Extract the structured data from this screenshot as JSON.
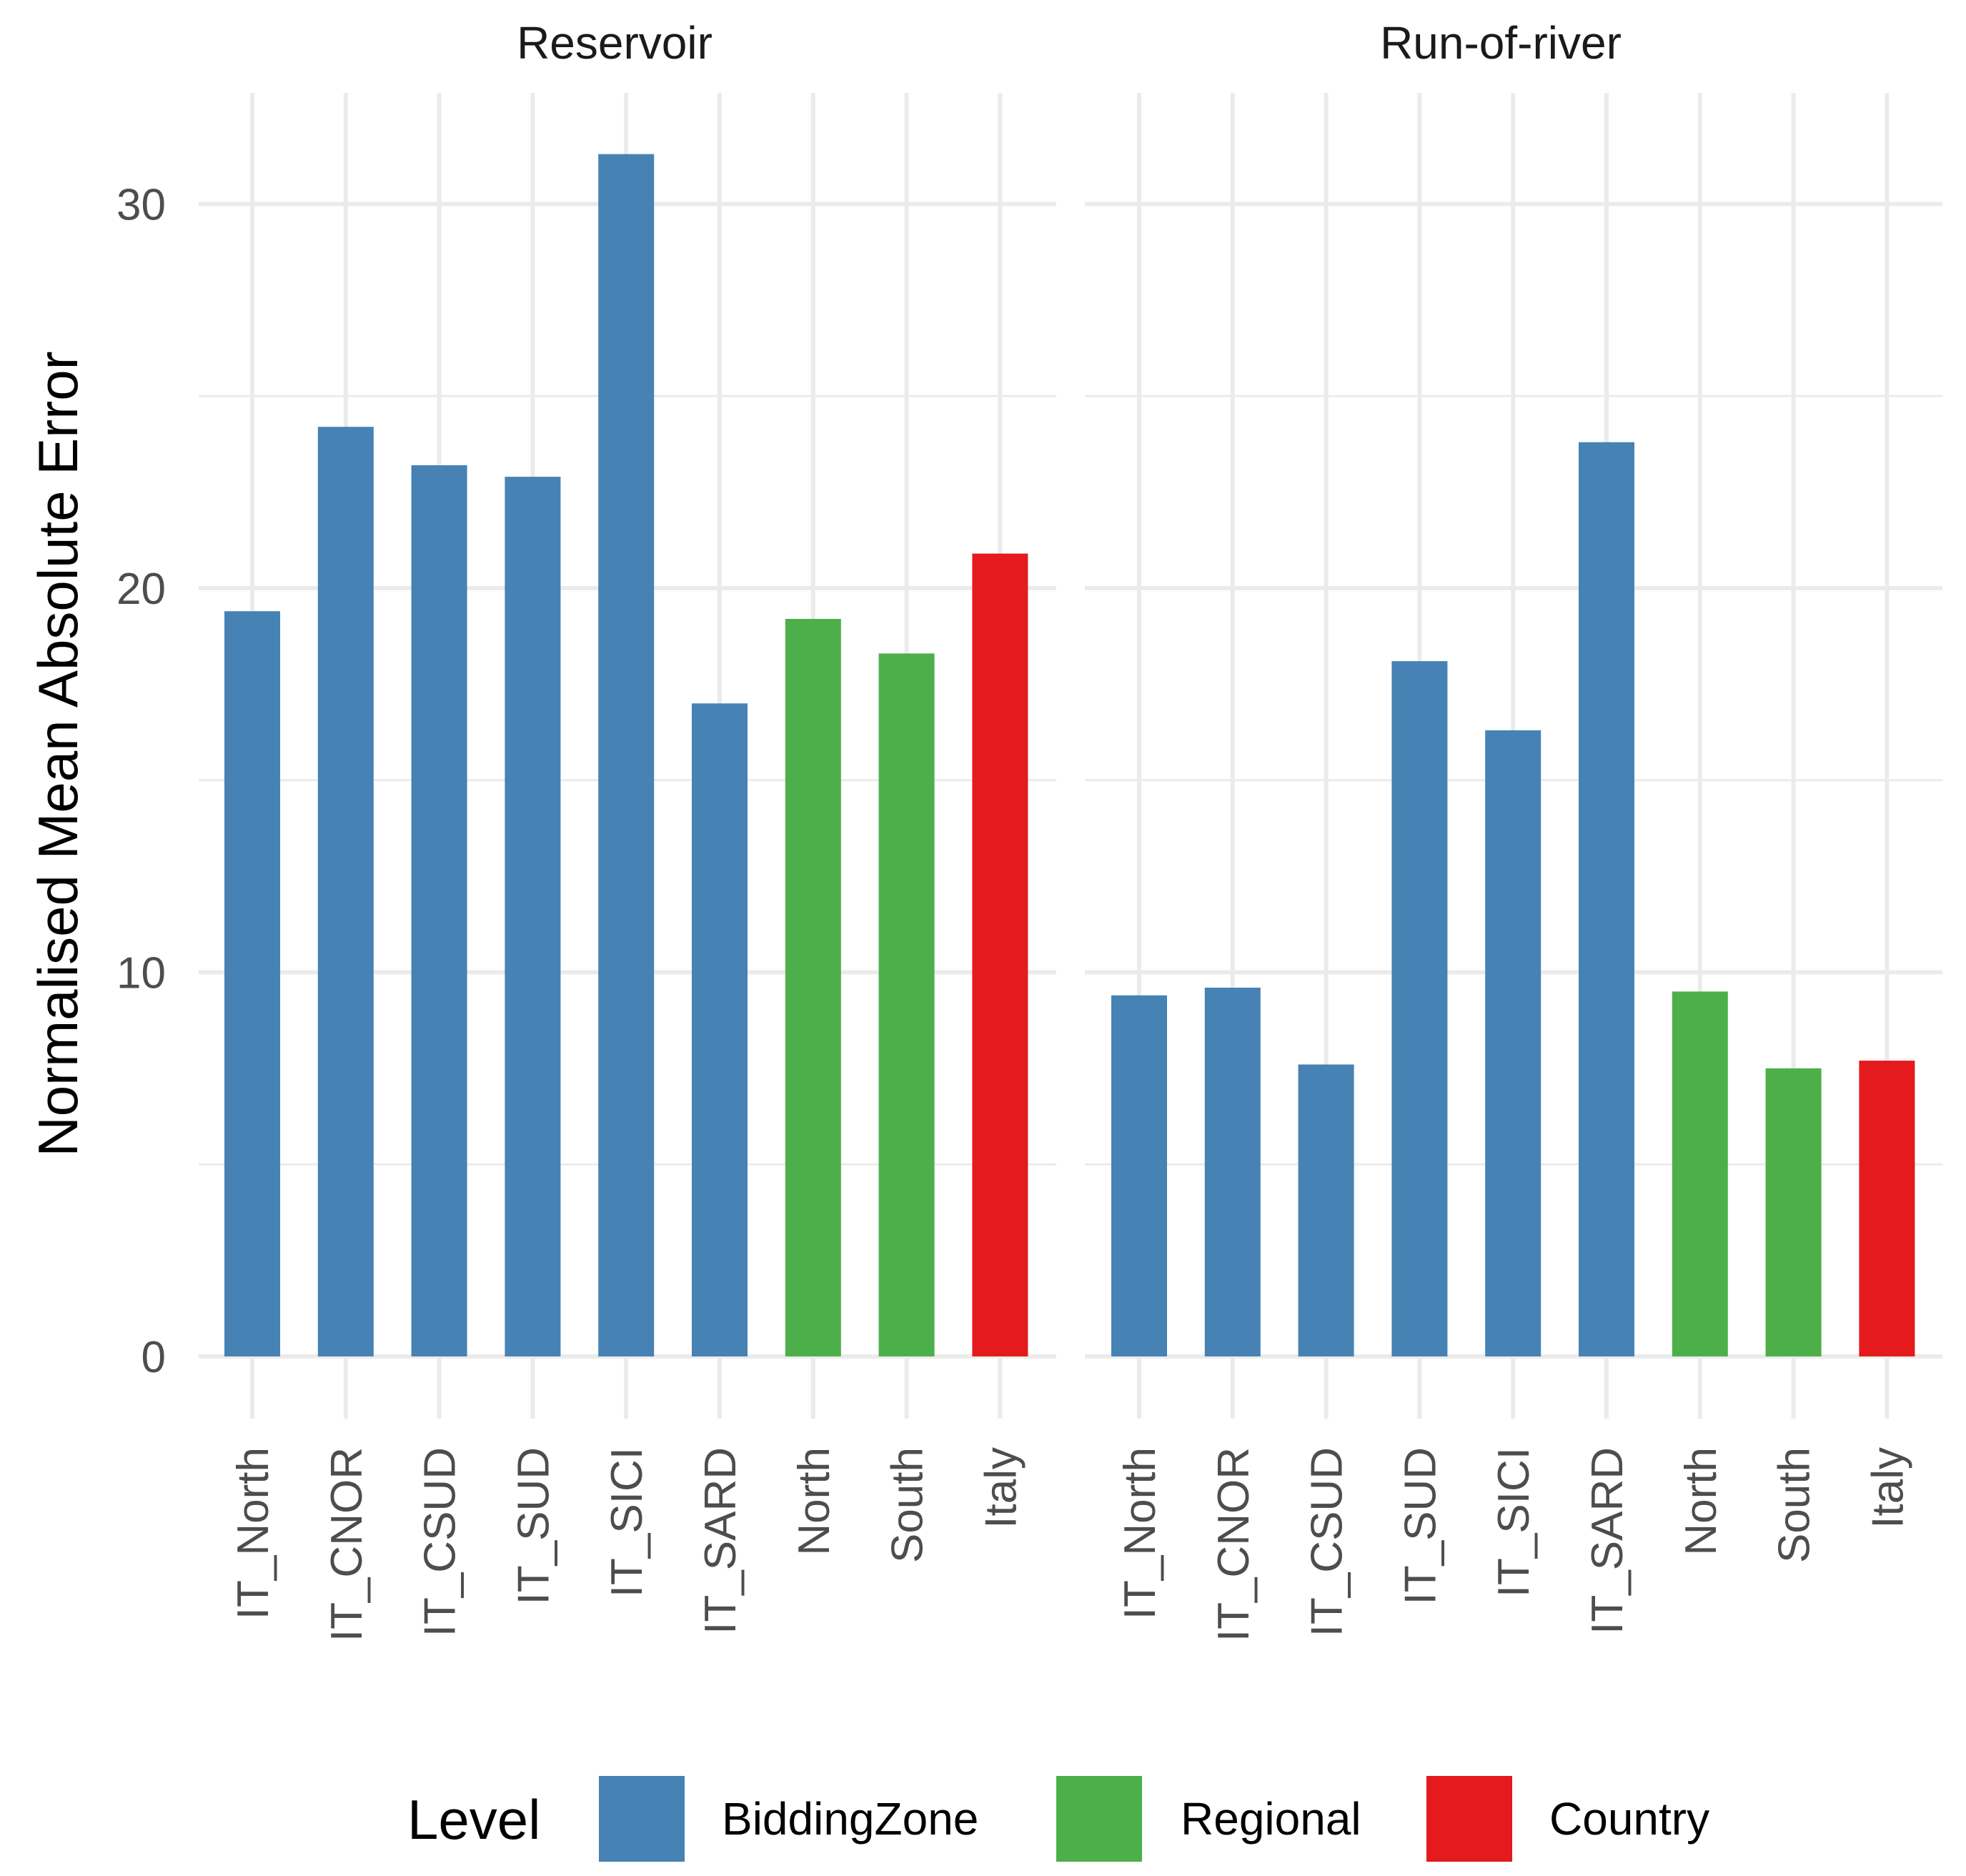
{
  "chart_data": {
    "type": "bar",
    "ylabel": "Normalised Mean Absolute Error",
    "ylim": [
      0,
      32
    ],
    "yticks": [
      0,
      10,
      20,
      30
    ],
    "categories": [
      "IT_North",
      "IT_CNOR",
      "IT_CSUD",
      "IT_SUD",
      "IT_SICI",
      "IT_SARD",
      "North",
      "South",
      "Italy"
    ],
    "levels": [
      "BiddingZone",
      "BiddingZone",
      "BiddingZone",
      "BiddingZone",
      "BiddingZone",
      "BiddingZone",
      "Regional",
      "Regional",
      "Country"
    ],
    "panels": [
      {
        "title": "Reservoir",
        "values": [
          19.4,
          24.2,
          23.2,
          22.9,
          31.3,
          17.0,
          19.2,
          18.3,
          20.9
        ]
      },
      {
        "title": "Run-of-river",
        "values": [
          9.4,
          9.6,
          7.6,
          18.1,
          16.3,
          23.8,
          9.5,
          7.5,
          7.7
        ]
      }
    ],
    "legend": {
      "title": "Level",
      "position": "bottom",
      "entries": [
        {
          "label": "BiddingZone",
          "color": "#4682b4"
        },
        {
          "label": "Regional",
          "color": "#4daf4a"
        },
        {
          "label": "Country",
          "color": "#e41a1c"
        }
      ]
    }
  }
}
